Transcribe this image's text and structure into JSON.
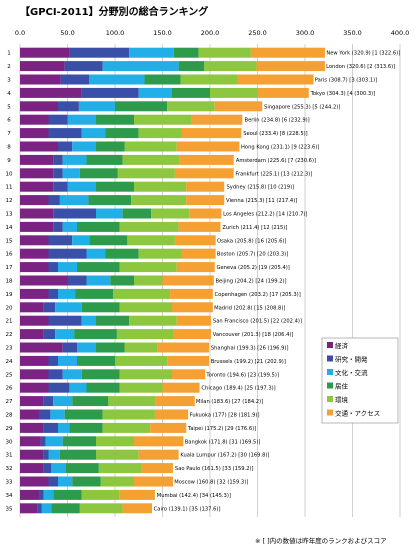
{
  "chart_data": {
    "type": "bar",
    "orientation": "horizontal",
    "stacked": true,
    "title": "【GPCI-2011】分野別の総合ランキング",
    "xlim": [
      0,
      400
    ],
    "x_ticks": [
      "0.0",
      "50.0",
      "100.0",
      "150.0",
      "200.0",
      "250.0",
      "300.0",
      "350.0",
      "400.0"
    ],
    "legend_position": "right",
    "note": "※ [ ]内の数値は昨年度のランクおよびスコア",
    "series": [
      {
        "name": "経済",
        "color": "#7b2382"
      },
      {
        "name": "研究・開発",
        "color": "#3a4fa8"
      },
      {
        "name": "文化・交流",
        "color": "#22aee6"
      },
      {
        "name": "居住",
        "color": "#2e9a4c"
      },
      {
        "name": "環境",
        "color": "#8dc63f"
      },
      {
        "name": "交通・アクセス",
        "color": "#f5a033"
      }
    ],
    "rows": [
      {
        "rank": "1",
        "city": "New York",
        "total": 320.9,
        "label": "New York (320.9) [1 (322.6)]",
        "parts": [
          52,
          63,
          47,
          26,
          55,
          78
        ]
      },
      {
        "rank": "2",
        "city": "London",
        "total": 320.6,
        "label": "London (320.6) [2 (313.6)]",
        "parts": [
          47,
          40,
          80,
          27,
          55,
          72
        ]
      },
      {
        "rank": "3",
        "city": "Paris",
        "total": 308.7,
        "label": "Paris (308.7) [3 (303.1)]",
        "parts": [
          43,
          30,
          58,
          38,
          60,
          80
        ]
      },
      {
        "rank": "4",
        "city": "Tokyo",
        "total": 304.3,
        "label": "Tokyo (304.3) [4 (300.3)]",
        "parts": [
          65,
          60,
          35,
          40,
          50,
          54
        ]
      },
      {
        "rank": "5",
        "city": "Singapore",
        "total": 255.3,
        "label": "Singapore (255.3) [5 (244.2)]",
        "parts": [
          40,
          22,
          38,
          55,
          50,
          50
        ]
      },
      {
        "rank": "6",
        "city": "Berlin",
        "total": 234.8,
        "label": "Berlin (234.8) [6 (232.9)]",
        "parts": [
          30,
          20,
          30,
          40,
          60,
          54
        ]
      },
      {
        "rank": "7",
        "city": "Seoul",
        "total": 233.4,
        "label": "Seoul (233.4) [8 (228.5)]",
        "parts": [
          30,
          35,
          25,
          35,
          45,
          63
        ]
      },
      {
        "rank": "8",
        "city": "Hong Kong",
        "total": 231.1,
        "label": "Hong Kong (231.1) [9 (223.6)]",
        "parts": [
          40,
          15,
          25,
          30,
          55,
          66
        ]
      },
      {
        "rank": "9",
        "city": "Amsterdam",
        "total": 225.6,
        "label": "Amsterdam (225.6) [7 (230.6)]",
        "parts": [
          35,
          10,
          25,
          38,
          60,
          57
        ]
      },
      {
        "rank": "10",
        "city": "Frankfurt",
        "total": 225.1,
        "label": "Frankfurt (225.1) [13 (212.3)]",
        "parts": [
          35,
          10,
          18,
          40,
          60,
          62
        ]
      },
      {
        "rank": "11",
        "city": "Sydney",
        "total": 215.8,
        "label": "Sydney (215.8) [10 (219)]",
        "parts": [
          35,
          15,
          30,
          40,
          55,
          40
        ]
      },
      {
        "rank": "12",
        "city": "Vienna",
        "total": 215.3,
        "label": "Vienna (215.3) [11 (217.4)]",
        "parts": [
          30,
          12,
          30,
          45,
          58,
          40
        ]
      },
      {
        "rank": "13",
        "city": "Los Angeles",
        "total": 212.2,
        "label": "Los Angeles (212.2) [14 (210.7)]",
        "parts": [
          35,
          45,
          28,
          30,
          40,
          34
        ]
      },
      {
        "rank": "14",
        "city": "Zurich",
        "total": 211.4,
        "label": "Zurich (211.4) [12 (215)]",
        "parts": [
          35,
          10,
          15,
          45,
          62,
          44
        ]
      },
      {
        "rank": "15",
        "city": "Osaka",
        "total": 205.8,
        "label": "Osaka (205.8) [16 (205.6)]",
        "parts": [
          30,
          25,
          18,
          40,
          50,
          43
        ]
      },
      {
        "rank": "16",
        "city": "Boston",
        "total": 205.7,
        "label": "Boston (205.7) [20 (203.3)]",
        "parts": [
          30,
          40,
          20,
          35,
          45,
          36
        ]
      },
      {
        "rank": "17",
        "city": "Geneva",
        "total": 205.2,
        "label": "Geneva (205.2) [19 (205.4)]",
        "parts": [
          30,
          10,
          20,
          45,
          60,
          40
        ]
      },
      {
        "rank": "18",
        "city": "Beijing",
        "total": 204.2,
        "label": "Beijing (204.2) [24 (199.2)]",
        "parts": [
          50,
          20,
          25,
          25,
          30,
          54
        ]
      },
      {
        "rank": "19",
        "city": "Copenhagen",
        "total": 203.2,
        "label": "Copenhagen (203.2) [17 (205.3)]",
        "parts": [
          30,
          10,
          18,
          40,
          60,
          45
        ]
      },
      {
        "rank": "20",
        "city": "Madrid",
        "total": 202.8,
        "label": "Madrid (202.8) [15 (208.8)]",
        "parts": [
          25,
          12,
          28,
          40,
          55,
          43
        ]
      },
      {
        "rank": "21",
        "city": "San Francisco",
        "total": 201.5,
        "label": "San Francisco (201.5) [22 (202.4)]",
        "parts": [
          30,
          35,
          15,
          35,
          50,
          36
        ]
      },
      {
        "rank": "22",
        "city": "Vancouver",
        "total": 201.3,
        "label": "Vancouver (201.3) [18 (206.4)]",
        "parts": [
          25,
          12,
          20,
          45,
          60,
          39
        ]
      },
      {
        "rank": "23",
        "city": "Shanghai",
        "total": 199.3,
        "label": "Shanghai (199.3) [26 (196.9)]",
        "parts": [
          45,
          15,
          20,
          30,
          35,
          54
        ]
      },
      {
        "rank": "24",
        "city": "Brussels",
        "total": 199.2,
        "label": "Brussels (199.2) [21 (202.9)]",
        "parts": [
          30,
          10,
          20,
          40,
          55,
          44
        ]
      },
      {
        "rank": "25",
        "city": "Toronto",
        "total": 194.6,
        "label": "Toronto (194.6) [23 (199.5)]",
        "parts": [
          30,
          15,
          20,
          40,
          55,
          35
        ]
      },
      {
        "rank": "26",
        "city": "Chicago",
        "total": 189.4,
        "label": "Chicago (189.4) [25 (197.3)]",
        "parts": [
          30,
          22,
          18,
          35,
          45,
          39
        ]
      },
      {
        "rank": "27",
        "city": "Milan",
        "total": 183.6,
        "label": "Milan (183.6) [27 (184.2)]",
        "parts": [
          25,
          10,
          20,
          38,
          50,
          41
        ]
      },
      {
        "rank": "28",
        "city": "Fukuoka",
        "total": 177,
        "label": "Fukuoka (177) [28 (181.9)]",
        "parts": [
          20,
          12,
          15,
          40,
          55,
          35
        ]
      },
      {
        "rank": "29",
        "city": "Taipei",
        "total": 175.2,
        "label": "Taipei (175.2) [29 (176.6)]",
        "parts": [
          25,
          15,
          12,
          35,
          50,
          38
        ]
      },
      {
        "rank": "30",
        "city": "Bangkok",
        "total": 171.8,
        "label": "Bangkok (171.8) [31 (169.5)]",
        "parts": [
          22,
          5,
          18,
          35,
          40,
          52
        ]
      },
      {
        "rank": "31",
        "city": "Kuala Lumpur",
        "total": 167.2,
        "label": "Kuala Lumpur (167.2) [30 (169.8)]",
        "parts": [
          25,
          5,
          12,
          38,
          45,
          42
        ]
      },
      {
        "rank": "32",
        "city": "Sao Paulo",
        "total": 161.5,
        "label": "Sao Paulo (161.5) [33 (159.2)]",
        "parts": [
          25,
          8,
          15,
          35,
          45,
          33
        ]
      },
      {
        "rank": "33",
        "city": "Moscow",
        "total": 160.8,
        "label": "Moscow (160.8) [32 (159.3)]",
        "parts": [
          30,
          10,
          15,
          30,
          35,
          41
        ]
      },
      {
        "rank": "34",
        "city": "Mumbai",
        "total": 142.4,
        "label": "Mumbai (142.4) [34 (145.3)]",
        "parts": [
          20,
          5,
          10,
          30,
          40,
          37
        ]
      },
      {
        "rank": "35",
        "city": "Cairo",
        "total": 139.1,
        "label": "Cairo (139.1) [35 (137.6)]",
        "parts": [
          18,
          5,
          10,
          30,
          45,
          31
        ]
      }
    ]
  }
}
